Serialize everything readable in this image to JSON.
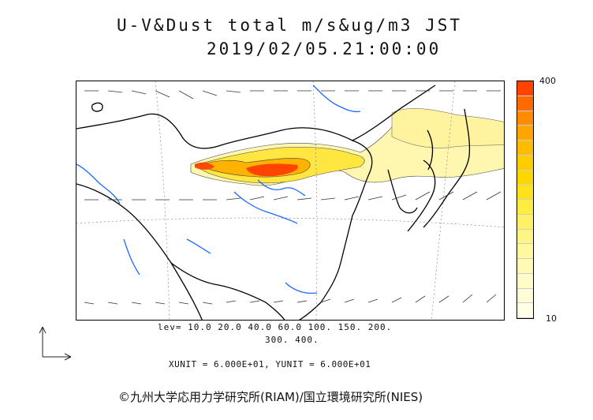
{
  "title": {
    "line1": "U-V&Dust total m/s&ug/m3 JST",
    "line2": "2019/02/05.21:00:00"
  },
  "colorbar": {
    "max_label": "400",
    "min_label": "10",
    "colors": [
      "#ff4400",
      "#ff6a00",
      "#ff8c00",
      "#ffa500",
      "#ffbb00",
      "#ffcc00",
      "#ffd700",
      "#ffe31a",
      "#ffec40",
      "#fff166",
      "#fff583",
      "#fff89d",
      "#fffbb5",
      "#fffcc8",
      "#fffdd8",
      "#fffee6"
    ]
  },
  "contour_levels": {
    "line1": "lev= 10.0 20.0 40.0 60.0 100. 150. 200.",
    "line2": "300. 400."
  },
  "units": {
    "text": "XUNIT = 6.000E+01, YUNIT = 6.000E+01"
  },
  "copyright": {
    "text": "©九州大学応用力学研究所(RIAM)/国立環境研究所(NIES)"
  },
  "map": {
    "coastline_color": "#000000",
    "river_color": "#1e6bff",
    "arrow_color": "#333333"
  }
}
